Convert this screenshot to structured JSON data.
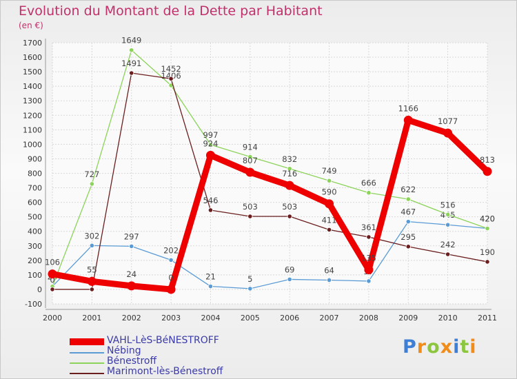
{
  "header": {
    "title": "Evolution du Montant de la Dette par Habitant",
    "unit": "(en €)"
  },
  "logo": {
    "letters": [
      "P",
      "r",
      "o",
      "x",
      "i",
      "t",
      "i"
    ],
    "colors": [
      "#3d7fd6",
      "#f08c1a",
      "#8cc63f",
      "#f08c1a",
      "#3d7fd6",
      "#8cc63f",
      "#f08c1a"
    ]
  },
  "chart_data": {
    "type": "line",
    "x": [
      "2000",
      "2001",
      "2002",
      "2003",
      "2004",
      "2005",
      "2006",
      "2007",
      "2008",
      "2009",
      "2010",
      "2011"
    ],
    "ylim": [
      -100,
      1700
    ],
    "yticks": [
      -100,
      0,
      100,
      200,
      300,
      400,
      500,
      600,
      700,
      800,
      900,
      1000,
      1100,
      1200,
      1300,
      1400,
      1500,
      1600,
      1700
    ],
    "grid": true,
    "legend_position": "bottom-left",
    "series": [
      {
        "name": "Nébing",
        "color": "#5a9bd5",
        "values": [
          20,
          302,
          297,
          202,
          21,
          5,
          69,
          64,
          57,
          467,
          445,
          420
        ],
        "labels": [
          "20",
          "302",
          "297",
          "202",
          "21",
          "5",
          "69",
          "64",
          "57",
          "467",
          "445",
          "420"
        ]
      },
      {
        "name": "Bénestroff",
        "color": "#8cd35a",
        "values": [
          20,
          727,
          1649,
          1406,
          997,
          914,
          832,
          749,
          666,
          622,
          516,
          420
        ],
        "labels": [
          "",
          "727",
          "1649",
          "1406",
          "997",
          "914",
          "832",
          "749",
          "666",
          "622",
          "516",
          "420"
        ]
      },
      {
        "name": "Marimont-lès-Bénestroff",
        "color": "#6b1e1e",
        "values": [
          0,
          0,
          1491,
          1452,
          546,
          503,
          503,
          411,
          361,
          295,
          242,
          190
        ],
        "labels": [
          "0",
          "0",
          "1491",
          "1452",
          "546",
          "503",
          "503",
          "411",
          "361",
          "295",
          "242",
          "190"
        ]
      },
      {
        "name": "VAHL-LèS-BéNESTROFF",
        "color": "#ee0000",
        "values": [
          106,
          55,
          24,
          0,
          924,
          807,
          716,
          590,
          135,
          1166,
          1077,
          813
        ],
        "labels": [
          "106",
          "55",
          "24",
          "0",
          "924",
          "807",
          "716",
          "590",
          "135",
          "1166",
          "1077",
          "813"
        ]
      }
    ]
  }
}
